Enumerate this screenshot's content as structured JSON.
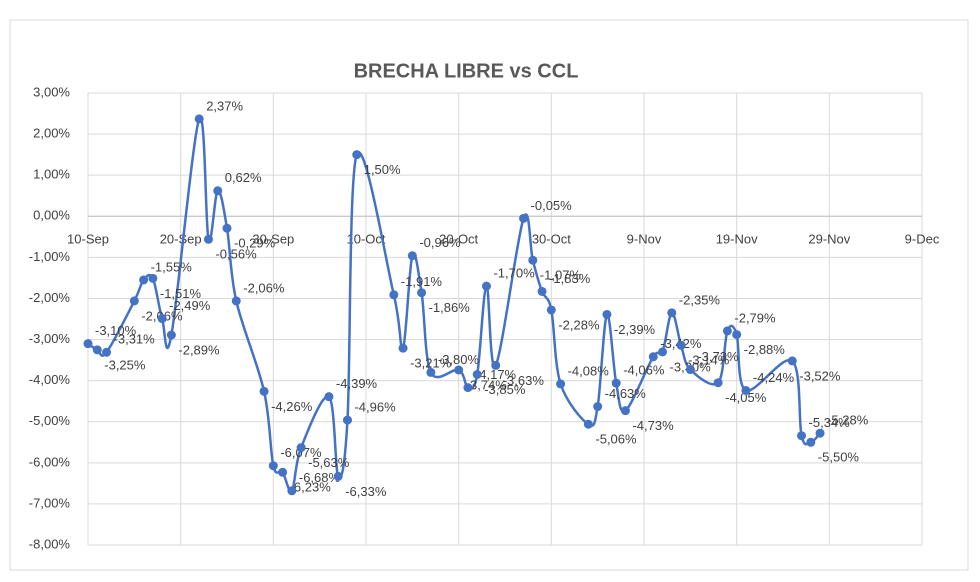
{
  "chart_data": {
    "type": "line",
    "title": "BRECHA LIBRE vs CCL",
    "x": [
      "10-Sep",
      "11-Sep",
      "12-Sep",
      "15-Sep",
      "16-Sep",
      "17-Sep",
      "18-Sep",
      "19-Sep",
      "22-Sep",
      "23-Sep",
      "24-Sep",
      "25-Sep",
      "26-Sep",
      "29-Sep",
      "30-Sep",
      "1-Oct",
      "2-Oct",
      "3-Oct",
      "6-Oct",
      "7-Oct",
      "8-Oct",
      "9-Oct",
      "13-Oct",
      "14-Oct",
      "15-Oct",
      "16-Oct",
      "17-Oct",
      "20-Oct",
      "21-Oct",
      "22-Oct",
      "23-Oct",
      "24-Oct",
      "27-Oct",
      "28-Oct",
      "29-Oct",
      "30-Oct",
      "31-Oct",
      "3-Nov",
      "4-Nov",
      "5-Nov",
      "6-Nov",
      "7-Nov",
      "10-Nov",
      "11-Nov",
      "12-Nov",
      "13-Nov",
      "14-Nov",
      "17-Nov",
      "18-Nov",
      "19-Nov",
      "20-Nov",
      "25-Nov",
      "26-Nov",
      "27-Nov",
      "28-Nov"
    ],
    "series": [
      {
        "color": "#4472c4",
        "values": [
          -3.1,
          -3.25,
          -3.31,
          -2.06,
          -1.55,
          -1.51,
          -2.49,
          -2.89,
          2.37,
          -0.56,
          0.62,
          -0.29,
          -2.06,
          -4.26,
          -6.07,
          -6.23,
          -6.68,
          -5.63,
          -4.39,
          -6.33,
          -4.96,
          1.5,
          -1.91,
          -3.21,
          -0.96,
          -1.86,
          -3.8,
          -3.74,
          -4.17,
          -3.85,
          -1.7,
          -3.63,
          -0.05,
          -1.07,
          -1.83,
          -2.28,
          -4.08,
          -5.06,
          -4.63,
          -2.39,
          -4.06,
          -4.73,
          -3.42,
          -3.3,
          -2.35,
          -3.14,
          -3.73,
          -4.05,
          -2.79,
          -2.88,
          -4.24,
          -3.52,
          -5.34,
          -5.5,
          -5.28
        ],
        "value_labels": [
          "-3,10%",
          "-3,25%",
          "-3,31%",
          "-2,06%",
          "-1,55%",
          "-1,51%",
          "-2,49%",
          "-2,89%",
          "2,37%",
          "-0,56%",
          "0,62%",
          "-0,29%",
          "-2,06%",
          "-4,26%",
          "-6,07%",
          "-6,23%",
          "-6,68%",
          "-5,63%",
          "-4,39%",
          "-6,33%",
          "-4,96%",
          "1,50%",
          "-1,91%",
          "-3,21%",
          "-0,96%",
          "-1,86%",
          "-3,80%",
          "-3,74%",
          "-4,17%",
          "-3,85%",
          "-1,70%",
          "-3,63%",
          "-0,05%",
          "-1,07%",
          "-1,83%",
          "-2,28%",
          "-4,08%",
          "-5,06%",
          "-4,63%",
          "-2,39%",
          "-4,06%",
          "-4,73%",
          "-3,42%",
          "-3,30%",
          "-2,35%",
          "-3,14%",
          "-3,73%",
          "-4,05%",
          "-2,79%",
          "-2,88%",
          "-4,24%",
          "-3,52%",
          "-5,34%",
          "-5,50%",
          "-5,28%"
        ]
      }
    ],
    "xlim": [
      "10-Sep",
      "9-Dec"
    ],
    "xticks": [
      "10-Sep",
      "20-Sep",
      "30-Sep",
      "10-Oct",
      "20-Oct",
      "30-Oct",
      "9-Nov",
      "19-Nov",
      "29-Nov",
      "9-Dec"
    ],
    "ylim": [
      -8,
      3
    ],
    "yticks": [
      {
        "value": 3,
        "label": "3,00%"
      },
      {
        "value": 2,
        "label": "2,00%"
      },
      {
        "value": 1,
        "label": "1,00%"
      },
      {
        "value": 0,
        "label": "0,00%"
      },
      {
        "value": -1,
        "label": "-1,00%"
      },
      {
        "value": -2,
        "label": "-2,00%"
      },
      {
        "value": -3,
        "label": "-3,00%"
      },
      {
        "value": -4,
        "label": "-4,00%"
      },
      {
        "value": -5,
        "label": "-5,00%"
      },
      {
        "value": -6,
        "label": "-6,00%"
      },
      {
        "value": -7,
        "label": "-7,00%"
      },
      {
        "value": -8,
        "label": "-8,00%"
      }
    ],
    "grid": true
  }
}
